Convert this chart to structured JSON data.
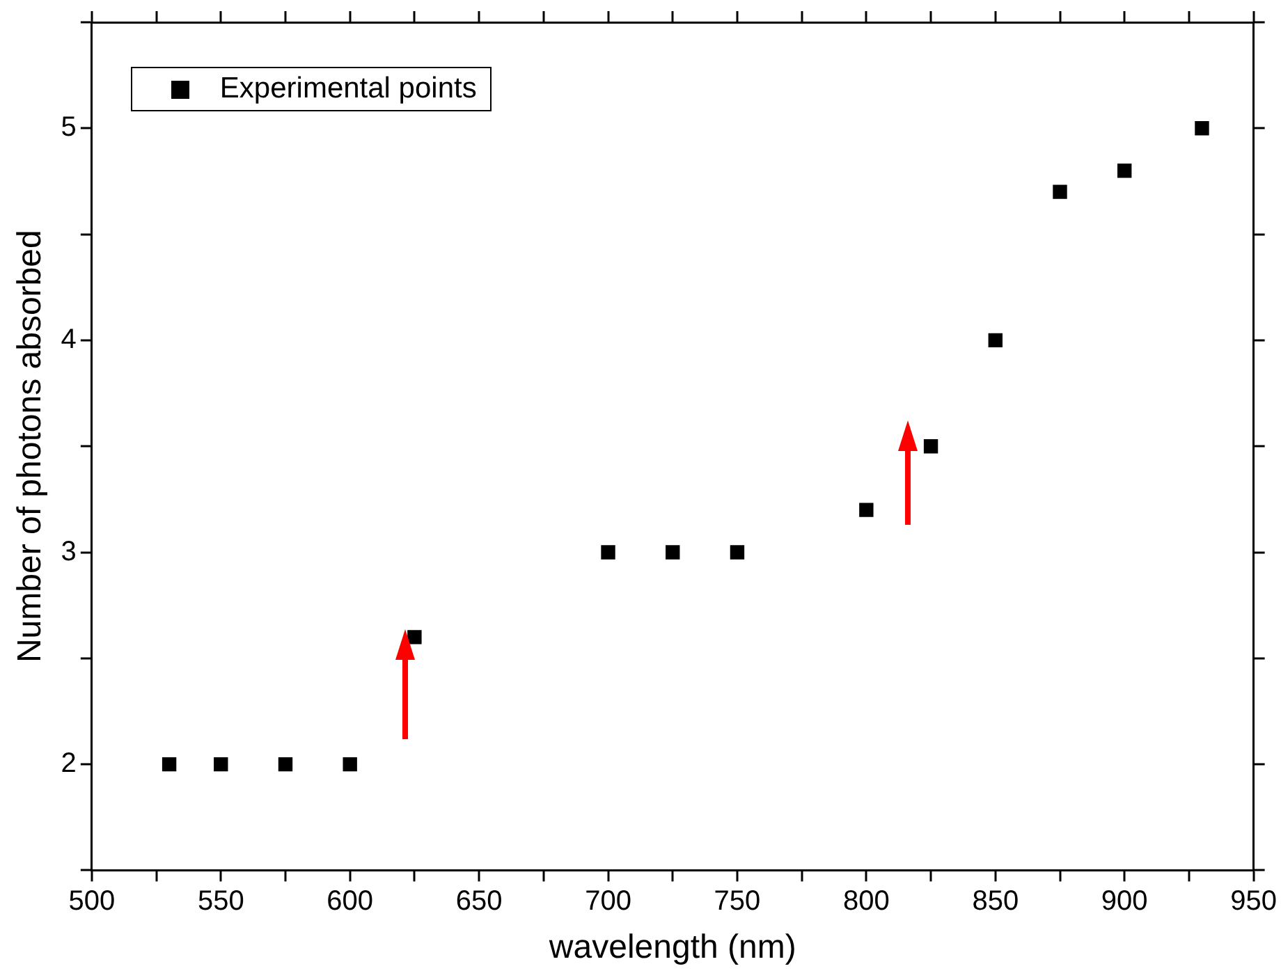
{
  "chart_data": {
    "type": "scatter",
    "xlabel": "wavelength (nm)",
    "ylabel": "Number of photons absorbed",
    "x": [
      530,
      550,
      575,
      600,
      625,
      700,
      725,
      750,
      800,
      825,
      850,
      875,
      900,
      930
    ],
    "series": [
      {
        "name": "Experimental points",
        "color": "#000000",
        "values": [
          2,
          2,
          2,
          2,
          2.6,
          3,
          3,
          3,
          3.2,
          3.5,
          4,
          4.7,
          4.8,
          5
        ]
      }
    ],
    "xlim": [
      500,
      950
    ],
    "xticks": [
      500,
      {
        "value": 525,
        "label": null
      },
      550,
      {
        "value": 575,
        "label": null
      },
      600,
      {
        "value": 625,
        "label": null
      },
      650,
      {
        "value": 675,
        "label": null
      },
      700,
      {
        "value": 725,
        "label": null
      },
      750,
      {
        "value": 775,
        "label": null
      },
      800,
      {
        "value": 825,
        "label": null
      },
      850,
      {
        "value": 875,
        "label": null
      },
      900,
      {
        "value": 925,
        "label": null
      },
      950
    ],
    "ylim": [
      1.5,
      5.5
    ],
    "yticks": [
      {
        "value": 1.5,
        "label": null
      },
      2,
      {
        "value": 2.5,
        "label": null
      },
      3,
      {
        "value": 3.5,
        "label": null
      },
      4,
      {
        "value": 4.5,
        "label": null
      },
      5,
      {
        "value": 5.5,
        "label": null
      }
    ],
    "marker": "square",
    "grid": false,
    "legend": "top left"
  }
}
